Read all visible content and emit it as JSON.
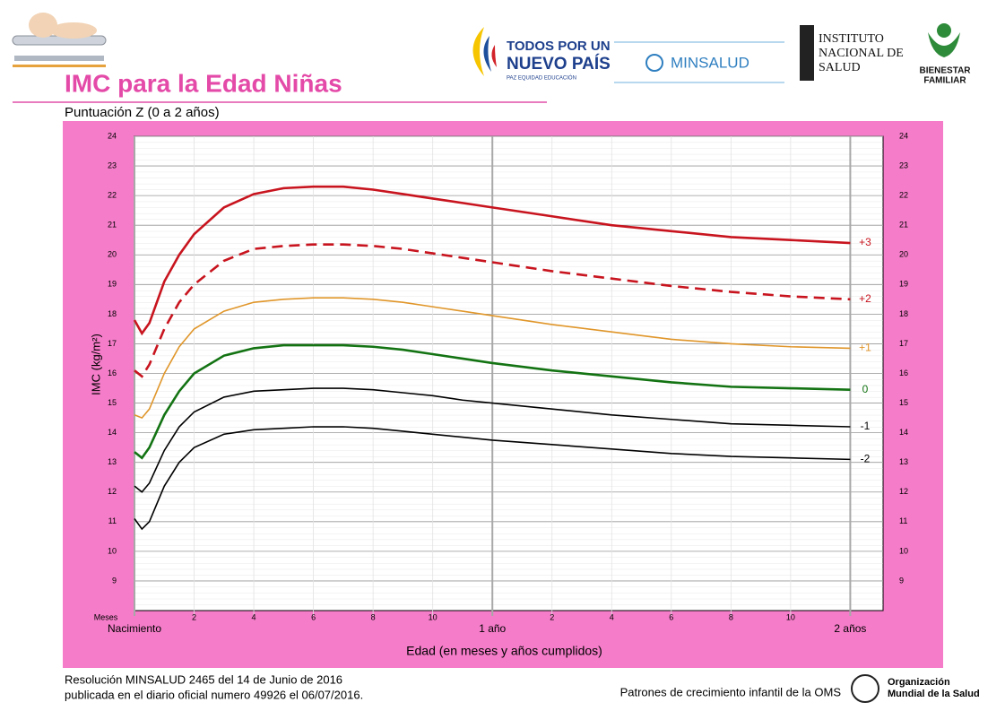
{
  "header": {
    "logo_1a": "TODOS POR UN",
    "logo_1b": "NUEVO PAÍS",
    "logo_1c": "PAZ  EQUIDAD  EDUCACIÓN",
    "logo_2": "MINSALUD",
    "logo_3a": "INSTITUTO",
    "logo_3b": "NACIONAL DE",
    "logo_3c": "SALUD",
    "logo_4a": "BIENESTAR",
    "logo_4b": "FAMILIAR"
  },
  "footer": {
    "line_1": "Resolución MINSALUD 2465 del 14 de Junio de 2016",
    "line_2": "publicada en el diario oficial numero 49926 el 06/07/2016.",
    "source": "Patrones de crecimiento infantil de la OMS",
    "org_1": "Organización",
    "org_2": "Mundial de la Salud"
  },
  "chart_data": {
    "type": "line",
    "title": "IMC para la Edad Niñas",
    "subtitle": "Puntuación Z (0 a 2 años)",
    "xlabel": "Edad (en meses y años cumplidos)",
    "ylabel": "IMC (kg/m²)",
    "x_unit_label": "Meses",
    "x": [
      0,
      0.25,
      0.5,
      1,
      1.5,
      2,
      3,
      4,
      5,
      6,
      7,
      8,
      9,
      10,
      11,
      12,
      14,
      16,
      18,
      20,
      22,
      24
    ],
    "series": [
      {
        "name": "+3",
        "color": "#c8141e",
        "line_width": 2.6,
        "dashed": false,
        "values": [
          17.8,
          17.35,
          17.7,
          19.1,
          20.0,
          20.7,
          21.6,
          22.05,
          22.25,
          22.3,
          22.3,
          22.2,
          22.05,
          21.9,
          21.75,
          21.6,
          21.3,
          21.0,
          20.8,
          20.6,
          20.5,
          20.4
        ]
      },
      {
        "name": "+2",
        "color": "#c8141e",
        "line_width": 2.6,
        "dashed": true,
        "values": [
          16.1,
          15.9,
          16.3,
          17.5,
          18.4,
          19.0,
          19.8,
          20.2,
          20.3,
          20.35,
          20.35,
          20.3,
          20.2,
          20.05,
          19.9,
          19.75,
          19.45,
          19.2,
          18.95,
          18.75,
          18.6,
          18.5
        ]
      },
      {
        "name": "+1",
        "color": "#e0962a",
        "line_width": 1.6,
        "dashed": false,
        "values": [
          14.6,
          14.5,
          14.8,
          16.0,
          16.9,
          17.5,
          18.1,
          18.4,
          18.5,
          18.55,
          18.55,
          18.5,
          18.4,
          18.25,
          18.1,
          17.95,
          17.65,
          17.4,
          17.15,
          17.0,
          16.9,
          16.85
        ]
      },
      {
        "name": "0",
        "color": "#137313",
        "line_width": 2.6,
        "dashed": false,
        "values": [
          13.35,
          13.15,
          13.5,
          14.6,
          15.4,
          16.0,
          16.6,
          16.85,
          16.95,
          16.95,
          16.95,
          16.9,
          16.8,
          16.65,
          16.5,
          16.35,
          16.1,
          15.9,
          15.7,
          15.55,
          15.5,
          15.45
        ]
      },
      {
        "name": "-1",
        "color": "#000000",
        "line_width": 1.6,
        "dashed": false,
        "values": [
          12.2,
          12.0,
          12.3,
          13.4,
          14.2,
          14.7,
          15.2,
          15.4,
          15.45,
          15.5,
          15.5,
          15.45,
          15.35,
          15.25,
          15.1,
          15.0,
          14.8,
          14.6,
          14.45,
          14.3,
          14.25,
          14.2
        ]
      },
      {
        "name": "-2",
        "color": "#000000",
        "line_width": 1.6,
        "dashed": false,
        "values": [
          11.1,
          10.75,
          11.0,
          12.2,
          13.0,
          13.5,
          13.95,
          14.1,
          14.15,
          14.2,
          14.2,
          14.15,
          14.05,
          13.95,
          13.85,
          13.75,
          13.6,
          13.45,
          13.3,
          13.2,
          13.15,
          13.1
        ]
      }
    ],
    "xlim": [
      0,
      25.1
    ],
    "xticks": [
      {
        "value": 0,
        "label": "Nacimiento"
      },
      2,
      4,
      6,
      8,
      10,
      {
        "value": 12,
        "label": "1 año"
      },
      {
        "value": 14,
        "label": "2"
      },
      {
        "value": 16,
        "label": "4"
      },
      {
        "value": 18,
        "label": "6"
      },
      {
        "value": 20,
        "label": "8"
      },
      {
        "value": 22,
        "label": "10"
      },
      {
        "value": 24,
        "label": "2 años"
      }
    ],
    "ylim": [
      8,
      24
    ],
    "yticks": [
      9,
      10,
      11,
      12,
      13,
      14,
      15,
      16,
      17,
      18,
      19,
      20,
      21,
      22,
      23,
      24
    ],
    "grid": true,
    "background": "#f47cc8"
  }
}
